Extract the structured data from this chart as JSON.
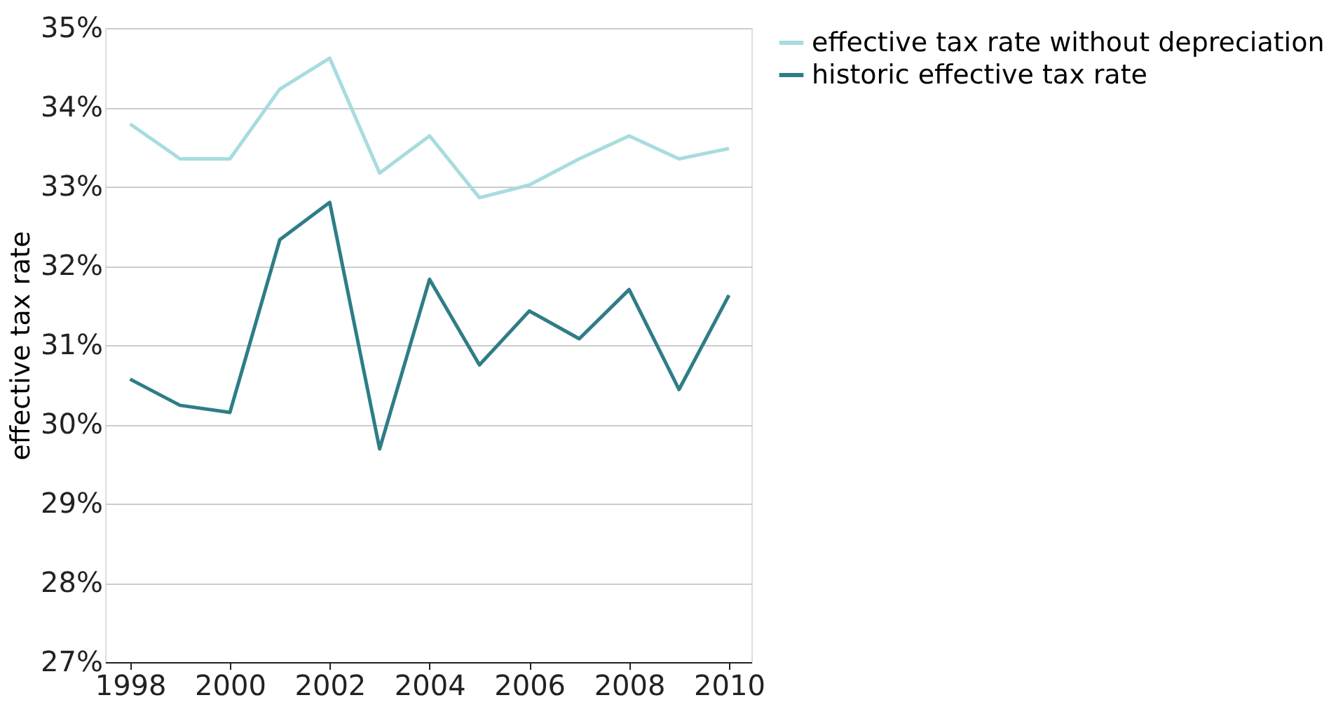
{
  "chart_data": {
    "type": "line",
    "ylabel": "effective tax rate",
    "x": [
      1998,
      1999,
      2000,
      2001,
      2002,
      2003,
      2004,
      2005,
      2006,
      2007,
      2008,
      2009,
      2010
    ],
    "series": [
      {
        "name": "effective tax rate without depreciation",
        "color": "#a8dcdf",
        "values": [
          33.79,
          33.35,
          33.35,
          34.23,
          34.62,
          33.17,
          33.64,
          32.86,
          33.02,
          33.35,
          33.64,
          33.35,
          33.48
        ]
      },
      {
        "name": "historic effective tax rate",
        "color": "#2e7d87",
        "values": [
          30.57,
          30.24,
          30.15,
          32.33,
          32.8,
          29.69,
          31.83,
          30.75,
          31.43,
          31.08,
          31.7,
          30.44,
          31.63
        ]
      }
    ],
    "xlim": [
      1997.5,
      2010.45
    ],
    "xticks": [
      1998,
      2000,
      2002,
      2004,
      2006,
      2008,
      2010
    ],
    "ylim": [
      27,
      35
    ],
    "yticks": [
      {
        "value": 27,
        "label": "27%"
      },
      {
        "value": 28,
        "label": "28%"
      },
      {
        "value": 29,
        "label": "29%"
      },
      {
        "value": 30,
        "label": "30%"
      },
      {
        "value": 31,
        "label": "31%"
      },
      {
        "value": 32,
        "label": "32%"
      },
      {
        "value": 33,
        "label": "33%"
      },
      {
        "value": 34,
        "label": "34%"
      },
      {
        "value": 35,
        "label": "35%"
      }
    ],
    "grid": "y",
    "legend": "right",
    "marker": "none",
    "line_style": "solid"
  }
}
